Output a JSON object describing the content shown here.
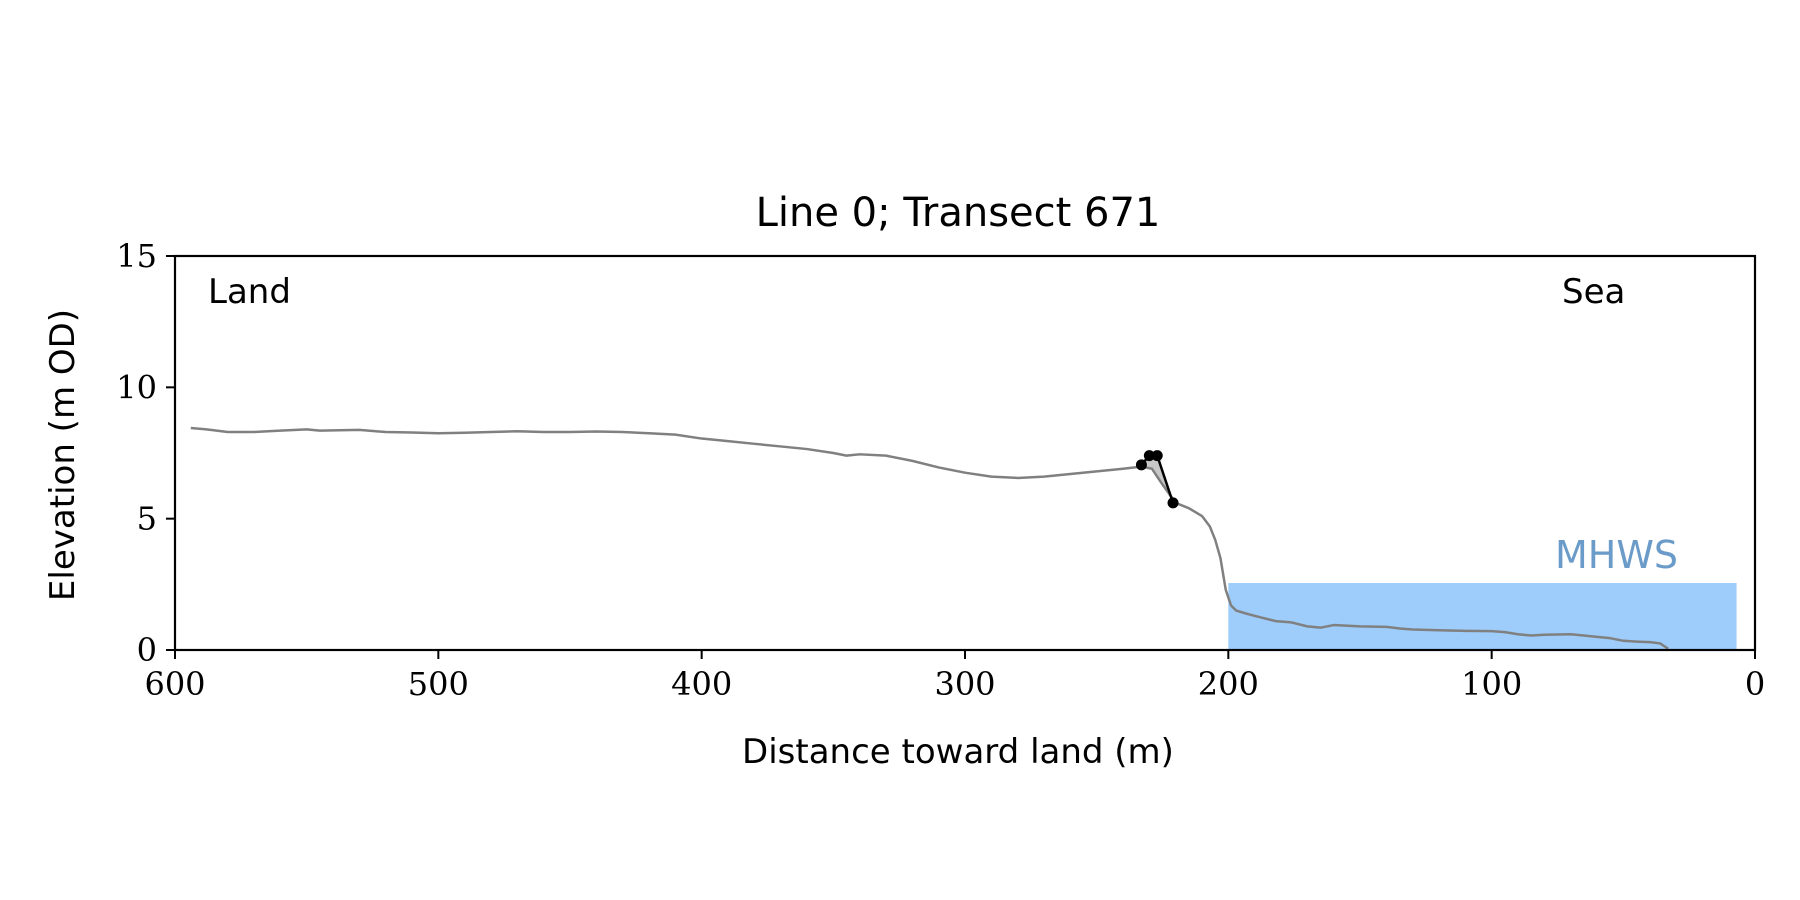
{
  "chart_data": {
    "type": "line",
    "title": "Line 0; Transect 671",
    "xlabel": "Distance toward land (m)",
    "ylabel": "Elevation (m OD)",
    "xlim": [
      600,
      0
    ],
    "ylim": [
      0,
      15
    ],
    "xticks": [
      600,
      500,
      400,
      300,
      200,
      100,
      0
    ],
    "yticks": [
      0,
      5,
      10,
      15
    ],
    "grid": false,
    "annotations": {
      "land_label": "Land",
      "sea_label": "Sea",
      "mhws_label": "MHWS"
    },
    "mhws": {
      "elevation": 2.55,
      "x_start": 200,
      "x_end": 7
    },
    "colors": {
      "profile": "#808080",
      "cliff_fill": "#c8c8c8",
      "markers": "#000000",
      "mhws_fill": "#9ecdfb",
      "mhws_label": "#6b9bc8"
    },
    "series": [
      {
        "role": "profile",
        "points": [
          [
            594,
            8.45
          ],
          [
            588,
            8.4
          ],
          [
            580,
            8.3
          ],
          [
            570,
            8.3
          ],
          [
            560,
            8.35
          ],
          [
            550,
            8.4
          ],
          [
            545,
            8.35
          ],
          [
            530,
            8.38
          ],
          [
            520,
            8.3
          ],
          [
            510,
            8.28
          ],
          [
            500,
            8.25
          ],
          [
            490,
            8.27
          ],
          [
            480,
            8.3
          ],
          [
            470,
            8.33
          ],
          [
            460,
            8.3
          ],
          [
            450,
            8.3
          ],
          [
            440,
            8.32
          ],
          [
            430,
            8.3
          ],
          [
            420,
            8.25
          ],
          [
            410,
            8.2
          ],
          [
            400,
            8.05
          ],
          [
            390,
            7.95
          ],
          [
            380,
            7.85
          ],
          [
            370,
            7.75
          ],
          [
            360,
            7.65
          ],
          [
            350,
            7.5
          ],
          [
            345,
            7.4
          ],
          [
            340,
            7.45
          ],
          [
            330,
            7.4
          ],
          [
            320,
            7.2
          ],
          [
            310,
            6.95
          ],
          [
            300,
            6.75
          ],
          [
            290,
            6.6
          ],
          [
            280,
            6.55
          ],
          [
            270,
            6.6
          ],
          [
            260,
            6.7
          ],
          [
            250,
            6.8
          ],
          [
            240,
            6.9
          ],
          [
            233,
            6.98
          ],
          [
            229,
            6.9
          ],
          [
            225,
            6.3
          ],
          [
            220,
            5.6
          ],
          [
            215,
            5.4
          ],
          [
            210,
            5.1
          ],
          [
            207,
            4.7
          ],
          [
            205,
            4.2
          ],
          [
            203,
            3.5
          ],
          [
            201,
            2.3
          ],
          [
            199,
            1.7
          ],
          [
            197,
            1.5
          ],
          [
            193,
            1.38
          ],
          [
            188,
            1.25
          ],
          [
            182,
            1.1
          ],
          [
            176,
            1.05
          ],
          [
            170,
            0.9
          ],
          [
            165,
            0.85
          ],
          [
            160,
            0.95
          ],
          [
            150,
            0.9
          ],
          [
            140,
            0.88
          ],
          [
            135,
            0.82
          ],
          [
            130,
            0.78
          ],
          [
            120,
            0.75
          ],
          [
            110,
            0.73
          ],
          [
            100,
            0.72
          ],
          [
            95,
            0.68
          ],
          [
            90,
            0.6
          ],
          [
            85,
            0.55
          ],
          [
            80,
            0.58
          ],
          [
            70,
            0.6
          ],
          [
            65,
            0.55
          ],
          [
            60,
            0.5
          ],
          [
            55,
            0.45
          ],
          [
            50,
            0.35
          ],
          [
            45,
            0.32
          ],
          [
            40,
            0.3
          ],
          [
            36,
            0.25
          ],
          [
            33,
            0.05
          ]
        ]
      },
      {
        "role": "cliff_markers",
        "points": [
          [
            233,
            7.05
          ],
          [
            230,
            7.4
          ],
          [
            227,
            7.4
          ],
          [
            221,
            5.6
          ]
        ]
      }
    ]
  }
}
